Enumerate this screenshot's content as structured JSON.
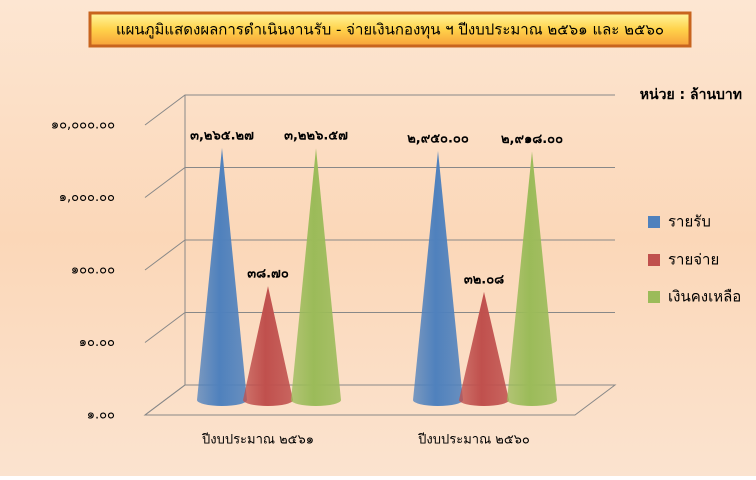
{
  "chart_data": {
    "type": "cone",
    "title": "แผนภูมิแสดงผลการดำเนินงานรับ - จ่ายเงินกองทุน ฯ  ปีงบประมาณ ๒๕๖๑ และ ๒๕๖๐",
    "unit": "หน่วย : ล้านบาท",
    "categories": [
      "ปีงบประมาณ ๒๕๖๑",
      "ปีงบประมาณ ๒๕๖๐"
    ],
    "series": [
      {
        "name": "รายรับ",
        "color": "#4f81bd",
        "values": [
          3265.27,
          2950.0
        ],
        "value_labels": [
          "๓,๒๖๕.๒๗",
          "๒,๙๕๐.๐๐"
        ]
      },
      {
        "name": "รายจ่าย",
        "color": "#c0504d",
        "values": [
          38.7,
          32.08
        ],
        "value_labels": [
          "๓๘.๗๐",
          "๓๒.๐๘"
        ]
      },
      {
        "name": "เงินคงเหลือ",
        "color": "#9bbb59",
        "values": [
          3226.57,
          2918.0
        ],
        "value_labels": [
          "๓,๒๒๖.๕๗",
          "๒,๙๑๘.๐๐"
        ]
      }
    ],
    "ylim": [
      1,
      10000
    ],
    "yticks": [
      {
        "value": 1,
        "label": "๑.๐๐"
      },
      {
        "value": 10,
        "label": "๑๐.๐๐"
      },
      {
        "value": 100,
        "label": "๑๐๐.๐๐"
      },
      {
        "value": 1000,
        "label": "๑,๐๐๐.๐๐"
      },
      {
        "value": 10000,
        "label": "๑๐,๐๐๐.๐๐"
      }
    ],
    "log_scale": true,
    "grid": true,
    "legend": "right"
  }
}
